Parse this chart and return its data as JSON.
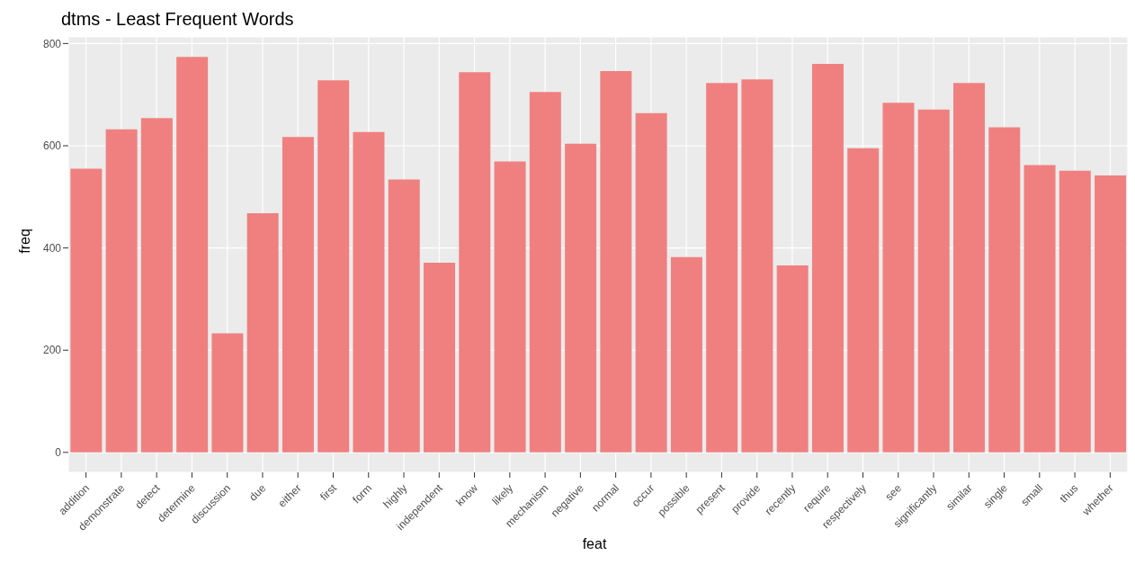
{
  "chart_data": {
    "type": "bar",
    "title": "dtms - Least Frequent Words",
    "xlabel": "feat",
    "ylabel": "freq",
    "categories": [
      "addition",
      "demonstrate",
      "detect",
      "determine",
      "discussion",
      "due",
      "either",
      "first",
      "form",
      "highly",
      "independent",
      "know",
      "likely",
      "mechanism",
      "negative",
      "normal",
      "occur",
      "possible",
      "present",
      "provide",
      "recently",
      "require",
      "respectively",
      "see",
      "significantly",
      "similar",
      "single",
      "small",
      "thus",
      "whether"
    ],
    "values": [
      555,
      632,
      654,
      774,
      233,
      468,
      617,
      728,
      627,
      534,
      371,
      744,
      569,
      705,
      604,
      746,
      664,
      382,
      723,
      730,
      366,
      760,
      595,
      684,
      671,
      723,
      636,
      562,
      551,
      542
    ],
    "color": "#f08080",
    "ylim": [
      -39,
      813
    ],
    "yticks": [
      0,
      200,
      400,
      600,
      800
    ],
    "grid": true
  }
}
